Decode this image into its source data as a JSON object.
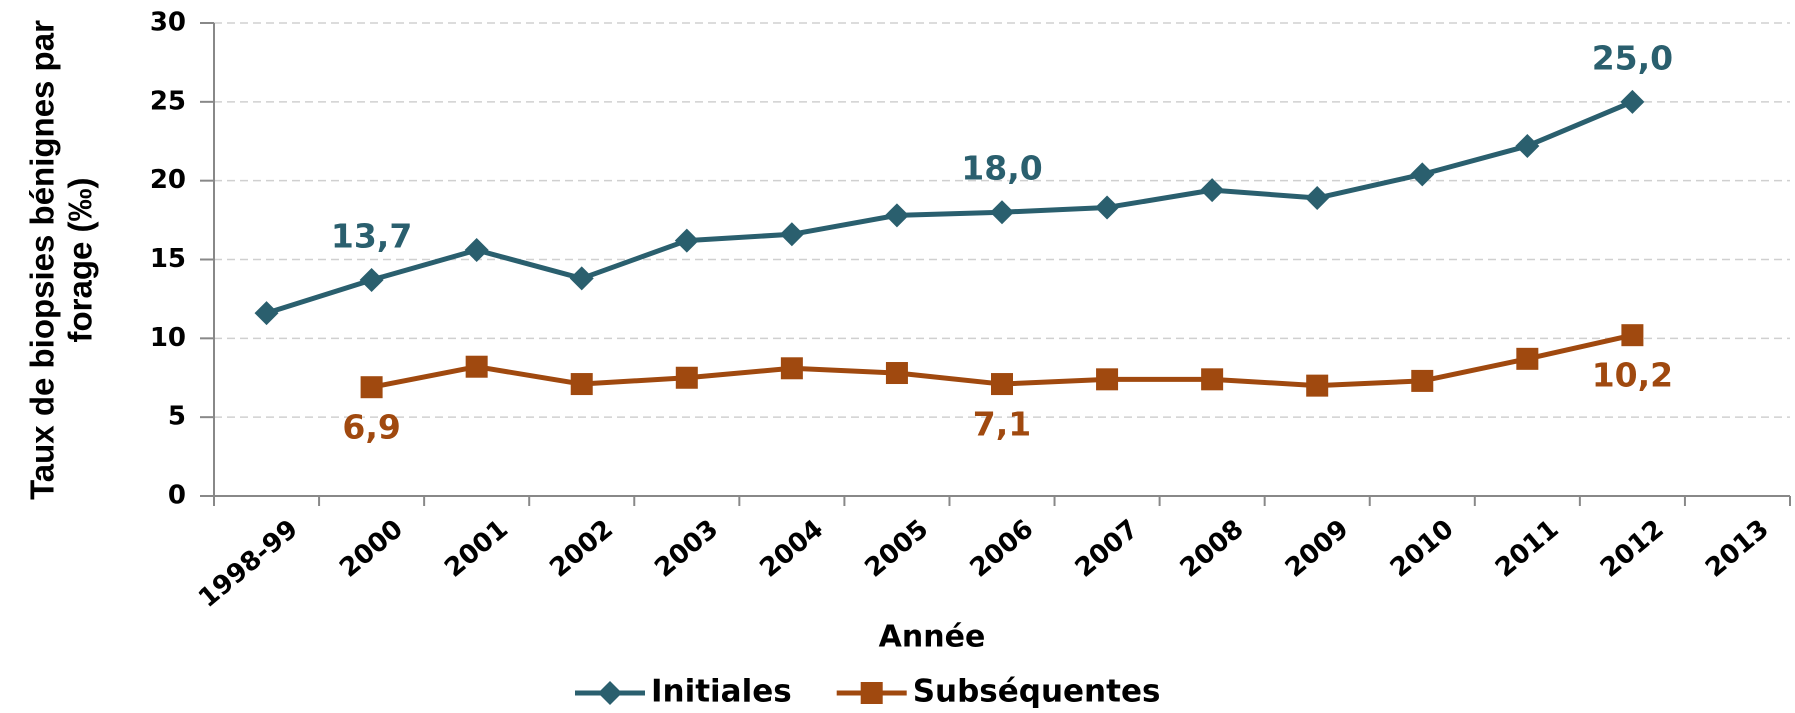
{
  "chart_data": {
    "type": "line",
    "xlabel": "Année",
    "ylabel": [
      "Taux de biopsies bénignes par",
      "forage (‰)"
    ],
    "categories": [
      "1998-99",
      "2000",
      "2001",
      "2002",
      "2003",
      "2004",
      "2005",
      "2006",
      "2007",
      "2008",
      "2009",
      "2010",
      "2011",
      "2012",
      "2013"
    ],
    "series": [
      {
        "name": "Initiales",
        "color": "#2a5f6e",
        "marker": "diamond",
        "values": [
          11.6,
          13.7,
          15.6,
          13.8,
          16.2,
          16.6,
          17.8,
          18.0,
          18.3,
          19.4,
          18.9,
          20.4,
          22.2,
          25.0,
          null
        ],
        "value_labels": [
          null,
          "13,7",
          null,
          null,
          null,
          null,
          null,
          "18,0",
          null,
          null,
          null,
          null,
          null,
          "25,0",
          null
        ]
      },
      {
        "name": "Subséquentes",
        "color": "#a0490f",
        "marker": "square",
        "values": [
          null,
          6.9,
          8.2,
          7.1,
          7.5,
          8.1,
          7.8,
          7.1,
          7.4,
          7.4,
          7.0,
          7.3,
          8.7,
          10.2,
          null
        ],
        "value_labels": [
          null,
          "6,9",
          null,
          null,
          null,
          null,
          null,
          "7,1",
          null,
          null,
          null,
          null,
          null,
          "10,2",
          null
        ]
      }
    ],
    "ylim": [
      0,
      30
    ],
    "yticks": [
      0,
      5,
      10,
      15,
      20,
      25,
      30
    ],
    "grid": true
  }
}
